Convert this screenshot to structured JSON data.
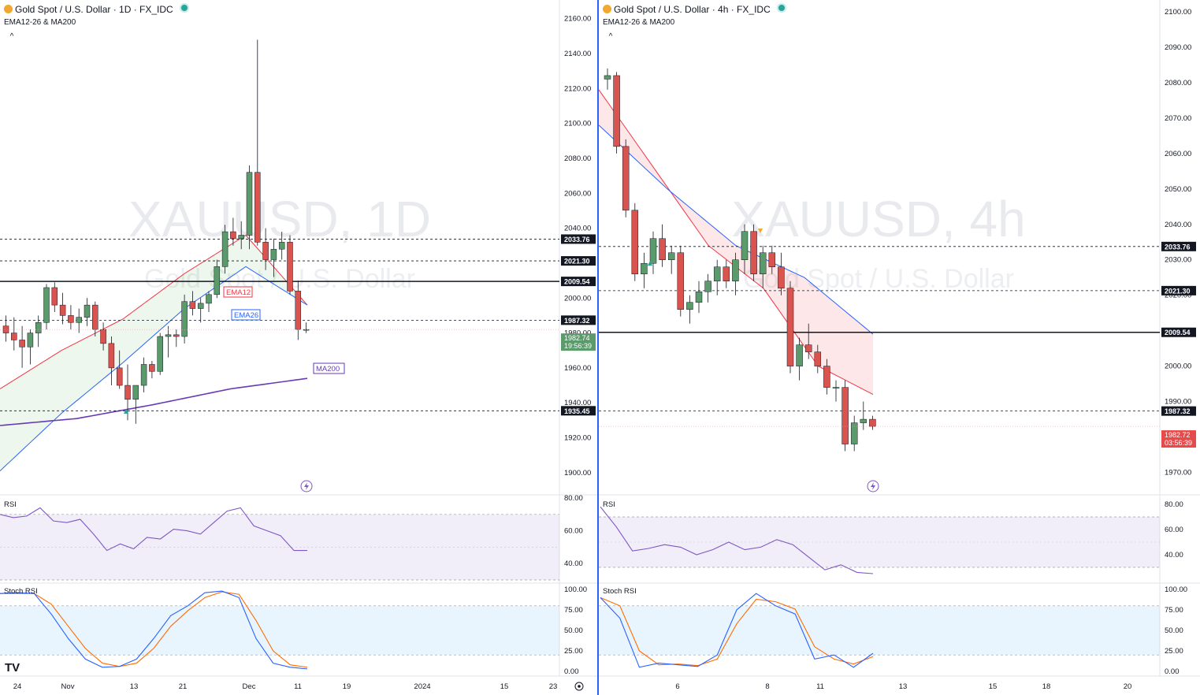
{
  "panes": [
    {
      "id": "left",
      "header": {
        "symbol": "Gold Spot / U.S. Dollar · 1D · FX_IDC",
        "indicator": "EMA12-26 & MA200",
        "collapse": "^"
      },
      "watermark": {
        "symbol": "XAUUSD, 1D",
        "name": "Gold Spot / U.S. Dollar"
      },
      "rsi_label": "RSI",
      "stoch_label": "Stoch RSI",
      "time_labels": [
        "24",
        "Nov",
        "13",
        "21",
        "Dec",
        "11",
        "19",
        "2024",
        "15",
        "23"
      ],
      "price_labels": {
        "current": "1982.74",
        "countdown": "19:56:39"
      },
      "logo": "TV",
      "ema12_label": "EMA12",
      "ema26_label": "EMA26",
      "ma200_label": "MA200"
    },
    {
      "id": "right",
      "header": {
        "symbol": "Gold Spot / U.S. Dollar · 4h · FX_IDC",
        "indicator": "EMA12-26 & MA200",
        "collapse": "^"
      },
      "watermark": {
        "symbol": "XAUUSD, 4h",
        "name": "Gold Spot / U.S. Dollar"
      },
      "rsi_label": "RSI",
      "stoch_label": "Stoch RSI",
      "time_labels": [
        "6",
        "8",
        "11",
        "13",
        "15",
        "18",
        "20"
      ],
      "price_labels": {
        "current": "1982.72",
        "countdown": "03:56:39"
      }
    }
  ],
  "chart_data": [
    {
      "type": "candlestick",
      "timeframe": "1D",
      "y_ticks": [
        1900,
        1920,
        1940,
        1960,
        1980,
        2000,
        2020,
        2040,
        2060,
        2080,
        2100,
        2120,
        2140,
        2160
      ],
      "ylim": [
        1890,
        2168
      ],
      "levels": [
        {
          "value": 2033.76,
          "label": "2033.76",
          "style": "dashed"
        },
        {
          "value": 2021.3,
          "label": "2021.30",
          "style": "dashed"
        },
        {
          "value": 2009.54,
          "label": "2009.54",
          "style": "solid"
        },
        {
          "value": 1987.32,
          "label": "1987.32",
          "style": "dashed"
        },
        {
          "value": 1935.45,
          "label": "1935.45",
          "style": "dashed"
        }
      ],
      "candles": [
        [
          1984,
          1990,
          1975,
          1980
        ],
        [
          1980,
          1989,
          1970,
          1976
        ],
        [
          1976,
          1984,
          1960,
          1972
        ],
        [
          1972,
          1982,
          1962,
          1980
        ],
        [
          1980,
          1990,
          1972,
          1986
        ],
        [
          1986,
          2008,
          1982,
          2006
        ],
        [
          2006,
          2009,
          1992,
          1996
        ],
        [
          1996,
          2003,
          1985,
          1990
        ],
        [
          1990,
          1996,
          1982,
          1986
        ],
        [
          1986,
          1994,
          1980,
          1989
        ],
        [
          1989,
          2000,
          1984,
          1996
        ],
        [
          1996,
          1998,
          1978,
          1982
        ],
        [
          1982,
          1986,
          1970,
          1974
        ],
        [
          1974,
          1978,
          1950,
          1960
        ],
        [
          1960,
          1970,
          1948,
          1950
        ],
        [
          1950,
          1962,
          1930,
          1942
        ],
        [
          1942,
          1950,
          1928,
          1950
        ],
        [
          1950,
          1966,
          1946,
          1962
        ],
        [
          1962,
          1964,
          1954,
          1958
        ],
        [
          1958,
          1980,
          1956,
          1978
        ],
        [
          1978,
          1984,
          1966,
          1979
        ],
        [
          1979,
          1982,
          1972,
          1978
        ],
        [
          1978,
          2002,
          1974,
          1998
        ],
        [
          1998,
          2004,
          1990,
          1994
        ],
        [
          1994,
          2000,
          1986,
          1997
        ],
        [
          1997,
          2004,
          1992,
          2002
        ],
        [
          2002,
          2022,
          2000,
          2018
        ],
        [
          2018,
          2042,
          2014,
          2038
        ],
        [
          2038,
          2046,
          2030,
          2034
        ],
        [
          2034,
          2044,
          2028,
          2036
        ],
        [
          2036,
          2076,
          2028,
          2072
        ],
        [
          2072,
          2148,
          2030,
          2032
        ],
        [
          2032,
          2040,
          2016,
          2022
        ],
        [
          2022,
          2034,
          2012,
          2028
        ],
        [
          2028,
          2038,
          2022,
          2032
        ],
        [
          2032,
          2036,
          2002,
          2004
        ],
        [
          2004,
          2010,
          1976,
          1982
        ],
        [
          1982,
          1986,
          1980,
          1982
        ]
      ],
      "ema12": [
        1948,
        1970,
        1988,
        2014,
        2036,
        1996
      ],
      "ema26": [
        1901,
        1934,
        1963,
        1994,
        2018,
        1996
      ],
      "ma200": [
        1927,
        1931,
        1939,
        1948,
        1954
      ],
      "rsi": {
        "ylim": [
          30,
          80
        ],
        "ticks": [
          40,
          60,
          80
        ],
        "band": [
          30,
          70
        ],
        "values": [
          70,
          68,
          69,
          74,
          66,
          65,
          67,
          58,
          48,
          52,
          49,
          56,
          55,
          61,
          60,
          58,
          65,
          72,
          74,
          63,
          60,
          57,
          48,
          48
        ]
      },
      "stoch_rsi": {
        "ylim": [
          0,
          100
        ],
        "ticks": [
          0,
          25,
          50,
          75,
          100
        ],
        "band": [
          20,
          80
        ],
        "k": [
          95,
          96,
          95,
          70,
          40,
          15,
          5,
          6,
          15,
          40,
          68,
          80,
          96,
          98,
          90,
          40,
          10,
          5,
          3
        ],
        "d": [
          95,
          95,
          95,
          82,
          55,
          28,
          10,
          6,
          10,
          28,
          55,
          74,
          90,
          97,
          94,
          62,
          25,
          8,
          5
        ]
      }
    },
    {
      "type": "candlestick",
      "timeframe": "4h",
      "y_ticks": [
        1970,
        1980,
        1990,
        2000,
        2010,
        2020,
        2030,
        2040,
        2050,
        2060,
        2070,
        2080,
        2090,
        2100
      ],
      "ylim": [
        1965,
        2102
      ],
      "levels": [
        {
          "value": 2033.76,
          "label": "2033.76",
          "style": "dashed"
        },
        {
          "value": 2021.3,
          "label": "2021.30",
          "style": "dashed"
        },
        {
          "value": 2009.54,
          "label": "2009.54",
          "style": "solid"
        },
        {
          "value": 1987.32,
          "label": "1987.32",
          "style": "dashed"
        }
      ],
      "candles": [
        [
          2081,
          2084,
          2078,
          2082
        ],
        [
          2082,
          2083,
          2060,
          2062
        ],
        [
          2062,
          2064,
          2042,
          2044
        ],
        [
          2044,
          2046,
          2024,
          2026
        ],
        [
          2026,
          2032,
          2022,
          2029
        ],
        [
          2029,
          2038,
          2026,
          2036
        ],
        [
          2036,
          2040,
          2028,
          2030
        ],
        [
          2030,
          2034,
          2026,
          2032
        ],
        [
          2032,
          2034,
          2014,
          2016
        ],
        [
          2016,
          2020,
          2012,
          2018
        ],
        [
          2018,
          2024,
          2015,
          2021
        ],
        [
          2021,
          2026,
          2018,
          2024
        ],
        [
          2024,
          2030,
          2020,
          2028
        ],
        [
          2028,
          2030,
          2022,
          2024
        ],
        [
          2024,
          2032,
          2020,
          2030
        ],
        [
          2030,
          2040,
          2026,
          2038
        ],
        [
          2038,
          2040,
          2024,
          2026
        ],
        [
          2026,
          2034,
          2022,
          2032
        ],
        [
          2032,
          2034,
          2026,
          2028
        ],
        [
          2028,
          2032,
          2020,
          2022
        ],
        [
          2022,
          2024,
          1998,
          2000
        ],
        [
          2000,
          2008,
          1996,
          2006
        ],
        [
          2006,
          2012,
          2002,
          2004
        ],
        [
          2004,
          2006,
          1998,
          2000
        ],
        [
          2000,
          2002,
          1992,
          1994
        ],
        [
          1994,
          1996,
          1990,
          1994
        ],
        [
          1994,
          1996,
          1976,
          1978
        ],
        [
          1978,
          1986,
          1976,
          1984
        ],
        [
          1984,
          1990,
          1982,
          1985
        ],
        [
          1985,
          1986,
          1982,
          1983
        ]
      ],
      "ema12": [
        2078,
        2056,
        2034,
        2022,
        2000,
        1992
      ],
      "ema26": [
        2068,
        2050,
        2034,
        2025,
        2009
      ],
      "rsi": {
        "ylim": [
          20,
          85
        ],
        "ticks": [
          40,
          60,
          80
        ],
        "band": [
          30,
          70
        ],
        "values": [
          78,
          62,
          43,
          45,
          48,
          46,
          40,
          44,
          50,
          44,
          46,
          52,
          48,
          38,
          28,
          32,
          26,
          25
        ]
      },
      "stoch_rsi": {
        "ylim": [
          0,
          100
        ],
        "ticks": [
          0,
          25,
          50,
          75,
          100
        ],
        "band": [
          20,
          80
        ],
        "k": [
          90,
          65,
          5,
          10,
          8,
          6,
          20,
          75,
          95,
          80,
          70,
          15,
          20,
          5,
          22
        ],
        "d": [
          90,
          80,
          25,
          8,
          9,
          7,
          15,
          58,
          88,
          85,
          76,
          30,
          15,
          9,
          18
        ]
      }
    }
  ]
}
